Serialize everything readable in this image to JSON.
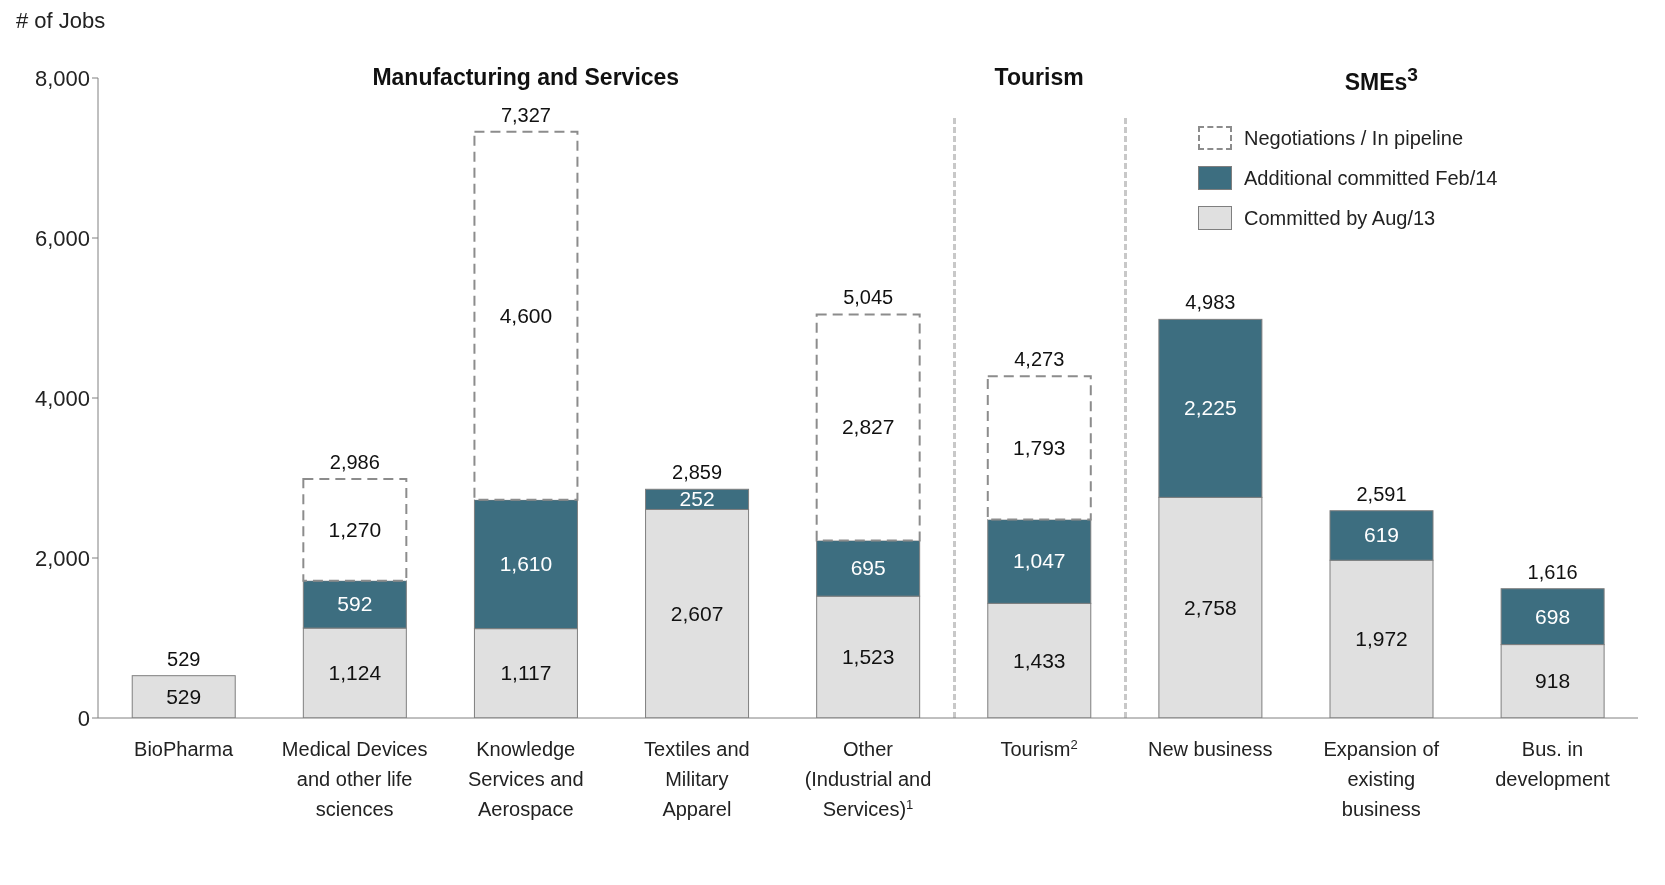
{
  "chart_data": {
    "type": "bar",
    "ylabel": "# of Jobs",
    "stacked": true,
    "legend": "top right",
    "grid": false,
    "annotations": [
      "Manufacturing and Services",
      "Tourism",
      "SMEs$^{3}$"
    ],
    "categories": [
      "BioPharma",
      "Medical Devices and other life sciences",
      "Knowledge Services and Aerospace",
      "Textiles and Military Apparel",
      "Other (Industrial and Services)$^{1}$",
      "Tourism$^{2}$",
      "New business",
      "Expansion of existing business",
      "Bus. in development"
    ],
    "series": [
      {
        "name": "Committed by Aug/13",
        "color": "#e0e0e0",
        "values": [
          529,
          1124,
          1117,
          2607,
          1523,
          1433,
          2758,
          1972,
          918
        ],
        "value_labels": [
          "529",
          "1,124",
          "1,117",
          "2,607",
          "1,523",
          "1,433",
          "2,758",
          "1,972",
          "918"
        ]
      },
      {
        "name": "Additional committed Feb/14",
        "color": "#3d6e80",
        "values": [
          null,
          592,
          1610,
          252,
          695,
          1047,
          2225,
          619,
          698
        ],
        "value_labels": [
          null,
          "592",
          "1,610",
          "252",
          "695",
          "1,047",
          "2,225",
          "619",
          "698"
        ]
      },
      {
        "name": "Negotiations / In pipeline",
        "color": "#8c8c8c",
        "line_style": "dashed",
        "values": [
          null,
          1270,
          4600,
          null,
          2827,
          1793,
          null,
          null,
          null
        ],
        "value_labels": [
          null,
          "1,270",
          "4,600",
          null,
          "2,827",
          "1,793",
          null,
          null,
          null
        ]
      }
    ],
    "totals": [
      "529",
      "2,986",
      "7,327",
      "2,859",
      "5,045",
      "4,273",
      "4,983",
      "2,591",
      "1,616"
    ],
    "ylim": [
      0,
      8000
    ],
    "yticks": [
      {
        "value": 0,
        "label": "0"
      },
      {
        "value": 2000,
        "label": "2,000"
      },
      {
        "value": 4000,
        "label": "4,000"
      },
      {
        "value": 6000,
        "label": "6,000"
      },
      {
        "value": 8000,
        "label": "8,000"
      }
    ]
  }
}
